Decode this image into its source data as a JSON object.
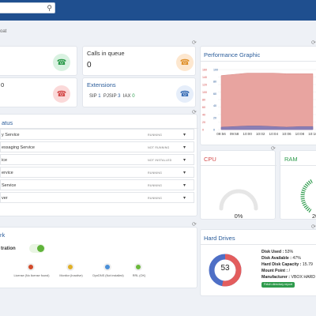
{
  "colors": {
    "topbar": "#1f4f8f",
    "accent": "#2a5c9a",
    "running": "#777777"
  },
  "breadcrumb": "oat",
  "cards": {
    "calls_in_queue": {
      "label": "Calls in queue",
      "value": "0",
      "icon": "phone-icon"
    },
    "left_top": {
      "icon": "phone-icon"
    },
    "left_bottom": {
      "label": "0",
      "icon": "phone-missed-icon"
    },
    "extensions": {
      "label": "Extensions",
      "sip_label": "SIP",
      "sip_value": "1",
      "pjsip_label": "PJSIP",
      "pjsip_value": "3",
      "iax_label": "IAX",
      "iax_value": "0",
      "icon": "phone-icon"
    }
  },
  "status_panel": {
    "title": "atus",
    "services": [
      {
        "name": "y Service",
        "status": "RUNNING"
      },
      {
        "name": "essaging Service",
        "status": "NOT RUNNING"
      },
      {
        "name": "ice",
        "status": "NOT INSTALLED"
      },
      {
        "name": "ervice",
        "status": "RUNNING"
      },
      {
        "name": "Service",
        "status": "RUNNING"
      },
      {
        "name": "ver",
        "status": "RUNNING"
      }
    ]
  },
  "network_panel": {
    "title": "rk",
    "registration_label": "tration",
    "licenses": [
      {
        "label": "License (No license found)",
        "color": "#d24a2a"
      },
      {
        "label": "Monitor (Inactive)",
        "color": "#e0b028"
      },
      {
        "label": "DynDNS (Not installed)",
        "color": "#4a8fd8"
      },
      {
        "label": "RRL (OK)",
        "color": "#6ab83a"
      }
    ]
  },
  "performance": {
    "title": "Performance Graphic",
    "y_ticks_left": [
      "160",
      "140",
      "120",
      "100",
      "80",
      "60",
      "40",
      "20",
      "0"
    ],
    "y_ticks_right": [
      "100",
      "80",
      "60",
      "40",
      "20",
      "0"
    ],
    "x_ticks": [
      "09:56",
      "09:58",
      "10:00",
      "10:02",
      "10:04",
      "10:06",
      "10:08",
      "10:10"
    ]
  },
  "chart_data": {
    "type": "area",
    "x": [
      "09:56",
      "09:58",
      "10:00",
      "10:02",
      "10:04",
      "10:06",
      "10:08",
      "10:10"
    ],
    "series": [
      {
        "values": [
          90,
          92,
          94,
          94,
          94,
          93,
          93,
          93
        ],
        "color": "#e8a4a0"
      },
      {
        "values": [
          4,
          5,
          6,
          6,
          5,
          4,
          5,
          5
        ],
        "color": "#8a7fb5"
      }
    ],
    "ylim": [
      0,
      100
    ]
  },
  "cpu": {
    "title": "CPU",
    "value": "0%"
  },
  "ram": {
    "title": "RAM",
    "value": "20"
  },
  "hard_drives": {
    "title": "Hard Drives",
    "donut_value": "53",
    "used_fraction": 0.53,
    "disk_used_label": "Disk Used :",
    "disk_used": "53%",
    "disk_available_label": "Disk Available :",
    "disk_available": "47%",
    "capacity_label": "Hard Disk Capacity :",
    "capacity": "15.79",
    "mount_label": "Mount Point :",
    "mount": "/",
    "manufacturer_label": "Manufacturer :",
    "manufacturer": "VBOX HARD",
    "button": "Fetch directory report"
  }
}
